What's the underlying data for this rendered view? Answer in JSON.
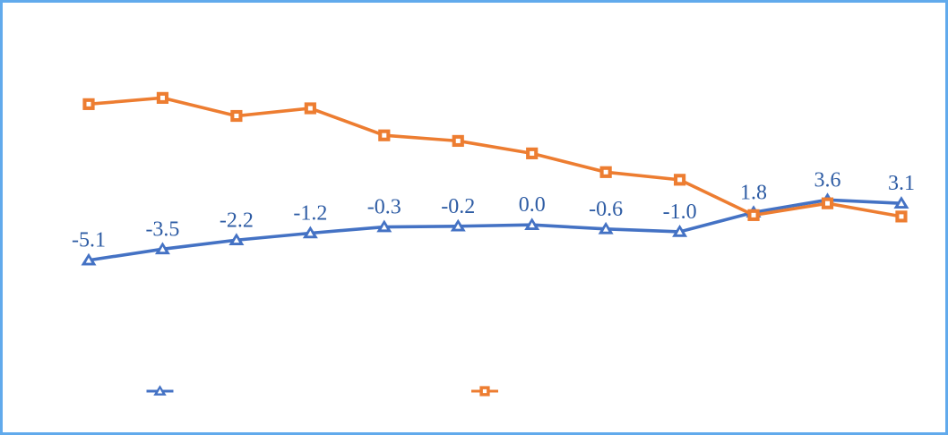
{
  "window": {
    "background_color": "#ffffff",
    "border_color": "#61aaec"
  },
  "chart_data": {
    "type": "line",
    "x": [
      1,
      2,
      3,
      4,
      5,
      6,
      7,
      8,
      9,
      10,
      11,
      12
    ],
    "title": "",
    "xlabel": "",
    "ylabel": "",
    "axes_visible": false,
    "grid": false,
    "ylim": [
      -7,
      20
    ],
    "legend_position": "bottom",
    "series": [
      {
        "name": "blue-triangle-series",
        "color": "#4472c4",
        "marker": "triangle",
        "values": [
          -5.1,
          -3.5,
          -2.2,
          -1.2,
          -0.3,
          -0.2,
          0.0,
          -0.6,
          -1.0,
          1.8,
          3.6,
          3.1
        ],
        "data_labels": [
          "-5.1",
          "-3.5",
          "-2.2",
          "-1.2",
          "-0.3",
          "-0.2",
          "0.0",
          "-0.6",
          "-1.0",
          "1.8",
          "3.6",
          "3.1"
        ],
        "data_label_color": "#2e5ca4"
      },
      {
        "name": "orange-square-series",
        "color": "#ed7d31",
        "marker": "square",
        "values": [
          17.4,
          18.3,
          15.7,
          16.8,
          12.9,
          12.1,
          10.3,
          7.6,
          6.5,
          1.4,
          3.1,
          1.2
        ],
        "data_labels": null
      }
    ]
  },
  "legend": {
    "items": [
      {
        "marker": "triangle",
        "color": "#4472c4"
      },
      {
        "marker": "square",
        "color": "#ed7d31"
      }
    ]
  }
}
